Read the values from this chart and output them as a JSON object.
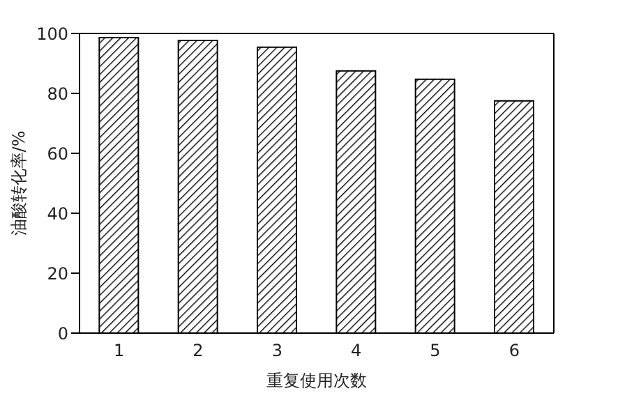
{
  "chart_data": {
    "type": "bar",
    "xlabel": "重复使用次数",
    "ylabel": "油酸转化率/%",
    "categories": [
      "1",
      "2",
      "3",
      "4",
      "5",
      "6"
    ],
    "values": [
      98.6,
      97.7,
      95.4,
      87.5,
      84.7,
      77.5
    ],
    "color": "#000000",
    "ylim": [
      0,
      100
    ],
    "yticks": [
      0,
      20,
      40,
      60,
      80,
      100
    ],
    "grid": false
  }
}
